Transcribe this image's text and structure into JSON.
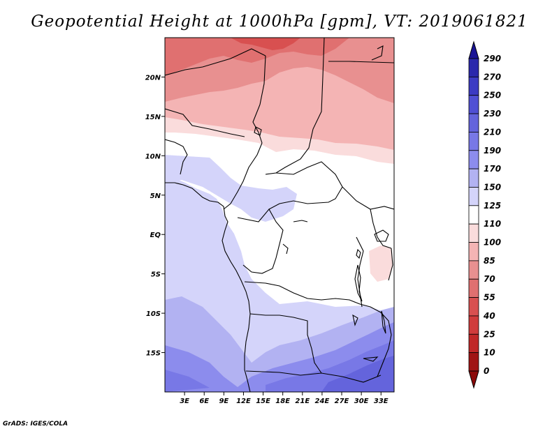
{
  "title": "Geopotential Height at 1000hPa [gpm], VT: 2019061821",
  "credit": "GrADS: IGES/COLA",
  "map": {
    "lat_labels": [
      "20N",
      "15N",
      "10N",
      "5N",
      "EQ",
      "5S",
      "10S",
      "15S"
    ],
    "lon_labels": [
      "3E",
      "6E",
      "9E",
      "12E",
      "15E",
      "18E",
      "21E",
      "24E",
      "27E",
      "30E",
      "33E"
    ],
    "lon_range": [
      0,
      35
    ],
    "lat_range": [
      -20,
      25
    ]
  },
  "colorbar": {
    "labels": [
      "290",
      "270",
      "250",
      "230",
      "210",
      "190",
      "170",
      "150",
      "125",
      "110",
      "100",
      "85",
      "70",
      "55",
      "40",
      "25",
      "10",
      "0"
    ],
    "colors": [
      "#1a1496",
      "#2a28ac",
      "#3c3bc3",
      "#5050d4",
      "#6464dc",
      "#7878e6",
      "#8c8ced",
      "#b2b2f2",
      "#d4d4fa",
      "#ffffff",
      "#fadcdc",
      "#f4b4b4",
      "#e89090",
      "#e07070",
      "#d85050",
      "#d03c3c",
      "#c02828",
      "#a01414",
      "#8c0a0a"
    ]
  }
}
